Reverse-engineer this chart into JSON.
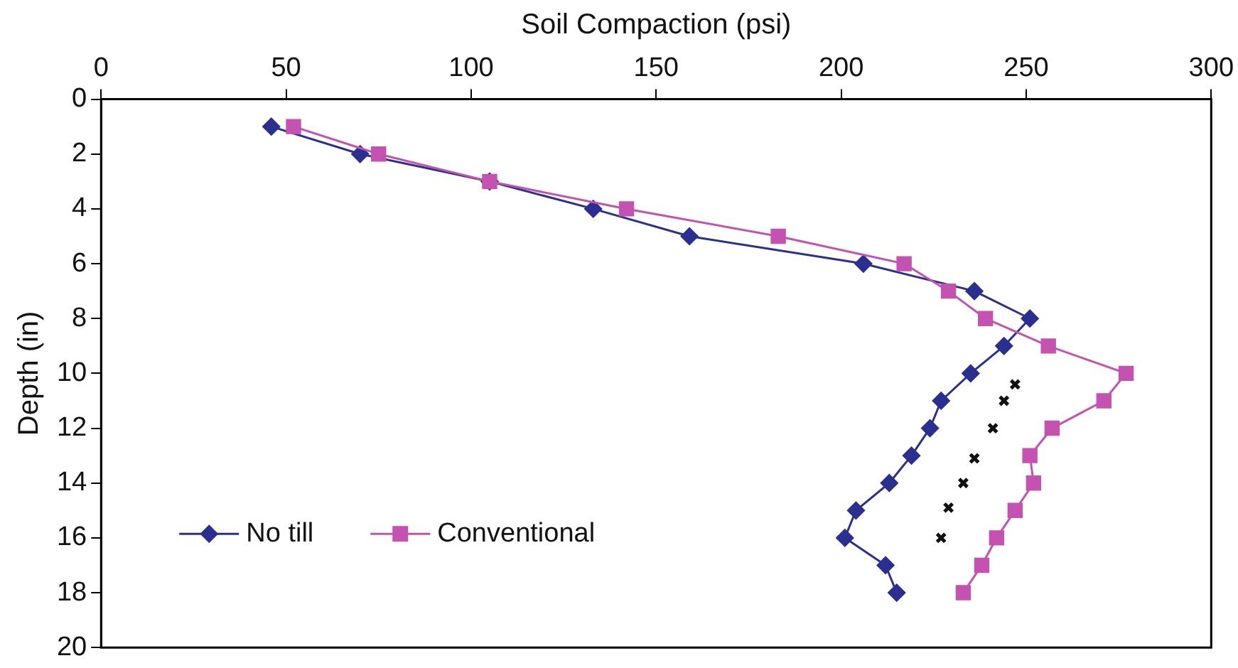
{
  "chart_data": {
    "type": "line",
    "xlabel": "Soil Compaction (psi)",
    "ylabel": "Depth (in)",
    "xlim": [
      0,
      300
    ],
    "xticks": [
      0,
      50,
      100,
      150,
      200,
      250,
      300
    ],
    "ylim": [
      20,
      0
    ],
    "yticks": [
      0,
      2,
      4,
      6,
      8,
      10,
      12,
      14,
      16,
      18,
      20
    ],
    "grid": false,
    "legend": "bottom left",
    "series": [
      {
        "name": "No till",
        "color": "#2b2f8f",
        "marker": "diamond",
        "x": [
          46,
          70,
          105,
          133,
          159,
          206,
          236,
          251,
          244,
          235,
          227,
          224,
          219,
          213,
          204,
          201,
          212,
          215
        ],
        "values": [
          1,
          2,
          3,
          4,
          5,
          6,
          7,
          8,
          9,
          10,
          11,
          12,
          13,
          14,
          15,
          16,
          17,
          18
        ]
      },
      {
        "name": "Conventional",
        "color": "#c452b0",
        "marker": "square",
        "x": [
          52,
          75,
          105,
          142,
          183,
          217,
          229,
          239,
          256,
          277,
          271,
          257,
          251,
          252,
          247,
          242,
          238,
          233
        ],
        "values": [
          1,
          2,
          3,
          4,
          5,
          6,
          7,
          8,
          9,
          10,
          11,
          12,
          13,
          14,
          15,
          16,
          17,
          18
        ]
      },
      {
        "type": "scatter",
        "color": "#111111",
        "marker": "cross",
        "x": [
          247,
          244,
          241,
          236,
          233,
          229,
          227
        ],
        "values": [
          10.4,
          11,
          12,
          13.1,
          14,
          14.9,
          16
        ]
      }
    ]
  }
}
